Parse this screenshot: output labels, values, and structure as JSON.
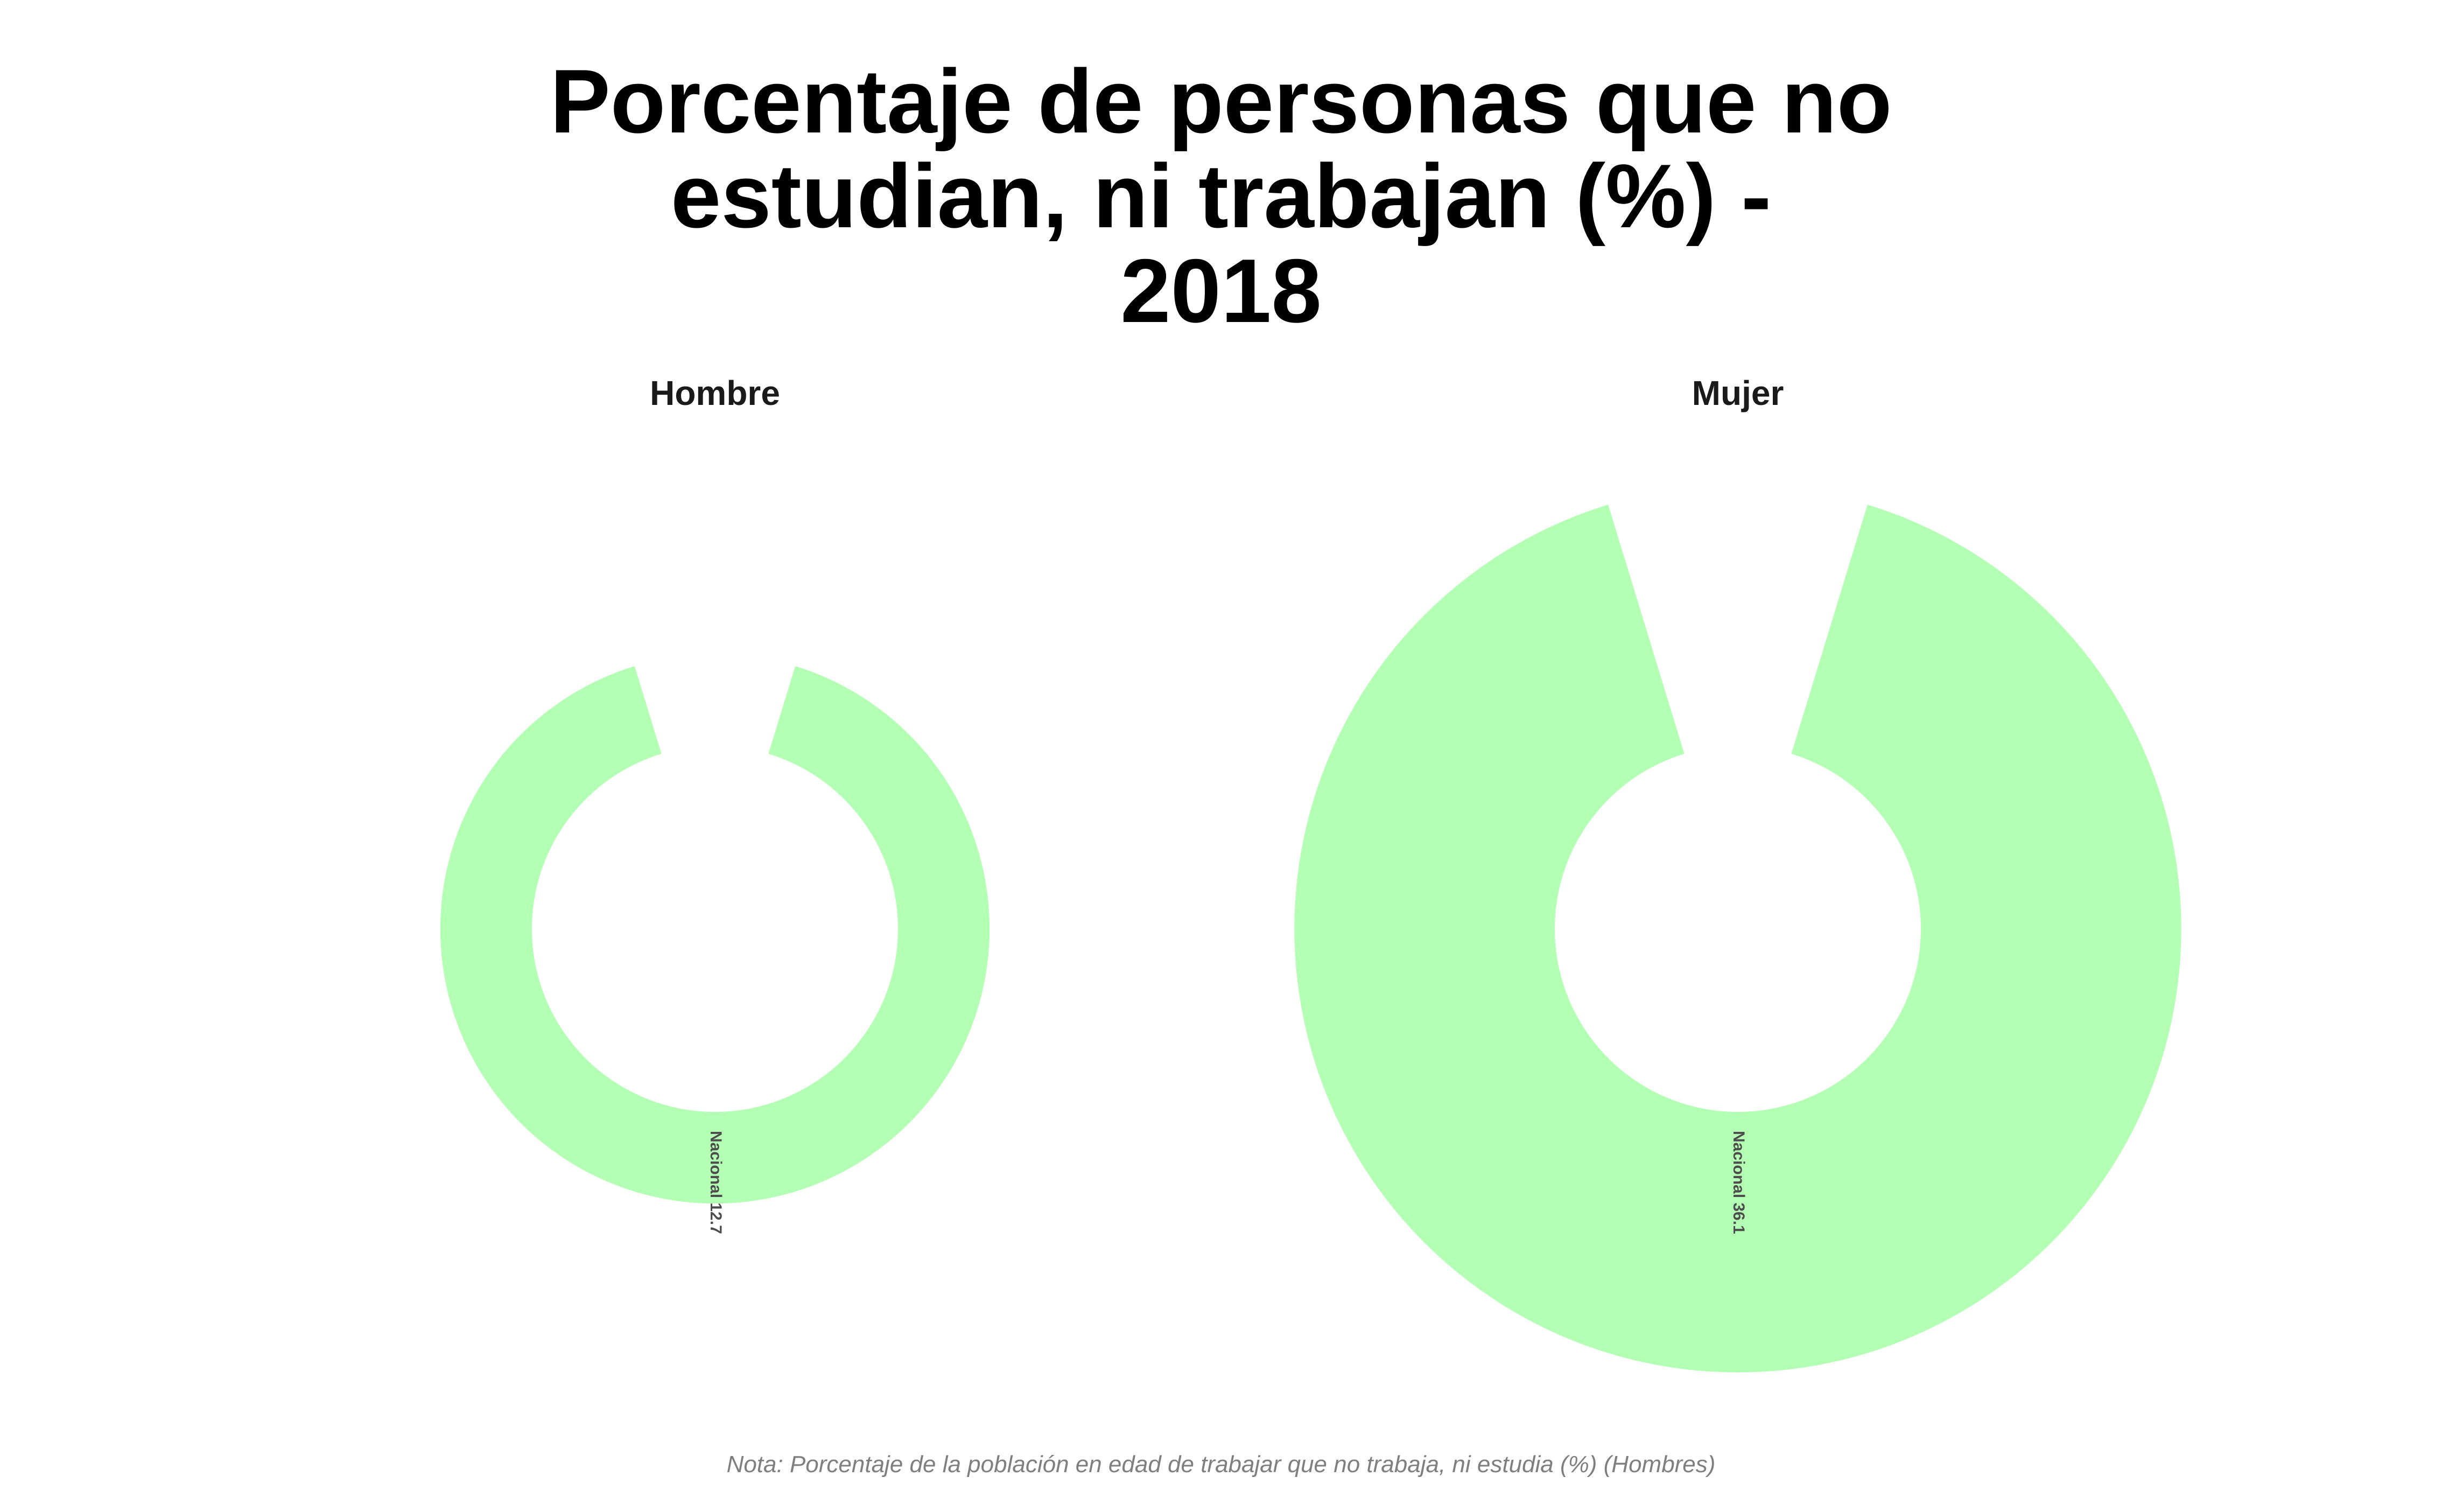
{
  "chart_data": {
    "type": "donut",
    "title": "Porcentaje de personas que no\nestudian, ni trabajan (%) -\n2018",
    "facets": [
      {
        "name": "Hombre",
        "label": "Nacional 12.7",
        "value": 12.7
      },
      {
        "name": "Mujer",
        "label": "Nacional 36.1",
        "value": 36.1
      }
    ],
    "color": "#b3ffb3",
    "note": "Nota: Porcentaje de la población en edad de trabajar que no trabaja, ni estudia (%) (Hombres)"
  }
}
